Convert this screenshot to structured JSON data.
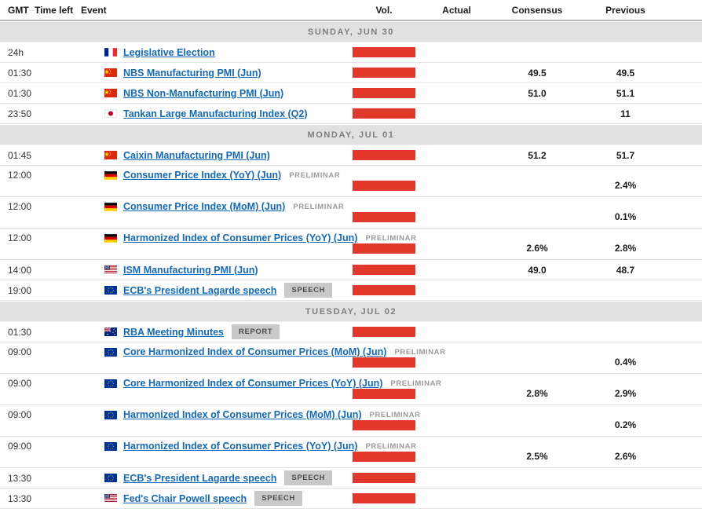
{
  "colors": {
    "volatility_bar_red": "#e0392b",
    "event_link_blue": "#1569b3",
    "section_band_gray": "#e1e1e1",
    "badge_gray": "#c9c9c9",
    "note_gray": "#9b9b9b"
  },
  "columns": {
    "gmt": "GMT",
    "time_left": "Time left",
    "event": "Event",
    "vol": "Vol.",
    "actual": "Actual",
    "consensus": "Consensus",
    "previous": "Previous"
  },
  "sections": [
    {
      "title": "SUNDAY, JUN 30",
      "rows": [
        {
          "time": "24h",
          "country": "FR",
          "flag": "france-flag-icon",
          "event": "Legislative Election",
          "note": "",
          "badge": "",
          "two_line": false,
          "actual": "",
          "consensus": "",
          "previous": ""
        },
        {
          "time": "01:30",
          "country": "CN",
          "flag": "china-flag-icon",
          "event": "NBS Manufacturing PMI (Jun)",
          "note": "",
          "badge": "",
          "two_line": false,
          "actual": "",
          "consensus": "49.5",
          "previous": "49.5"
        },
        {
          "time": "01:30",
          "country": "CN",
          "flag": "china-flag-icon",
          "event": "NBS Non-Manufacturing PMI (Jun)",
          "note": "",
          "badge": "",
          "two_line": false,
          "actual": "",
          "consensus": "51.0",
          "previous": "51.1"
        },
        {
          "time": "23:50",
          "country": "JP",
          "flag": "japan-flag-icon",
          "event": "Tankan Large Manufacturing Index (Q2)",
          "note": "",
          "badge": "",
          "two_line": false,
          "actual": "",
          "consensus": "",
          "previous": "11"
        }
      ]
    },
    {
      "title": "MONDAY, JUL 01",
      "rows": [
        {
          "time": "01:45",
          "country": "CN",
          "flag": "china-flag-icon",
          "event": "Caixin Manufacturing PMI (Jun)",
          "note": "",
          "badge": "",
          "two_line": false,
          "actual": "",
          "consensus": "51.2",
          "previous": "51.7"
        },
        {
          "time": "12:00",
          "country": "DE",
          "flag": "germany-flag-icon",
          "event": "Consumer Price Index (YoY) (Jun)",
          "note": "PRELIMINAR",
          "badge": "",
          "two_line": true,
          "actual": "",
          "consensus": "",
          "previous": "2.4%"
        },
        {
          "time": "12:00",
          "country": "DE",
          "flag": "germany-flag-icon",
          "event": "Consumer Price Index (MoM) (Jun)",
          "note": "PRELIMINAR",
          "badge": "",
          "two_line": true,
          "actual": "",
          "consensus": "",
          "previous": "0.1%"
        },
        {
          "time": "12:00",
          "country": "DE",
          "flag": "germany-flag-icon",
          "event": "Harmonized Index of Consumer Prices (YoY) (Jun)",
          "note": "PRELIMINAR",
          "badge": "",
          "two_line": true,
          "actual": "",
          "consensus": "2.6%",
          "previous": "2.8%"
        },
        {
          "time": "14:00",
          "country": "US",
          "flag": "usa-flag-icon",
          "event": "ISM Manufacturing PMI (Jun)",
          "note": "",
          "badge": "",
          "two_line": false,
          "actual": "",
          "consensus": "49.0",
          "previous": "48.7"
        },
        {
          "time": "19:00",
          "country": "EU",
          "flag": "european-union-flag-icon",
          "event": "ECB's President Lagarde speech",
          "note": "",
          "badge": "SPEECH",
          "two_line": false,
          "actual": "",
          "consensus": "",
          "previous": ""
        }
      ]
    },
    {
      "title": "TUESDAY, JUL 02",
      "rows": [
        {
          "time": "01:30",
          "country": "AU",
          "flag": "australia-flag-icon",
          "event": "RBA Meeting Minutes",
          "note": "",
          "badge": "REPORT",
          "two_line": false,
          "actual": "",
          "consensus": "",
          "previous": ""
        },
        {
          "time": "09:00",
          "country": "EU",
          "flag": "european-union-flag-icon",
          "event": "Core Harmonized Index of Consumer Prices (MoM) (Jun)",
          "note": "PRELIMINAR",
          "badge": "",
          "two_line": true,
          "actual": "",
          "consensus": "",
          "previous": "0.4%"
        },
        {
          "time": "09:00",
          "country": "EU",
          "flag": "european-union-flag-icon",
          "event": "Core Harmonized Index of Consumer Prices (YoY) (Jun)",
          "note": "PRELIMINAR",
          "badge": "",
          "two_line": true,
          "actual": "",
          "consensus": "2.8%",
          "previous": "2.9%"
        },
        {
          "time": "09:00",
          "country": "EU",
          "flag": "european-union-flag-icon",
          "event": "Harmonized Index of Consumer Prices (MoM) (Jun)",
          "note": "PRELIMINAR",
          "badge": "",
          "two_line": true,
          "actual": "",
          "consensus": "",
          "previous": "0.2%"
        },
        {
          "time": "09:00",
          "country": "EU",
          "flag": "european-union-flag-icon",
          "event": "Harmonized Index of Consumer Prices (YoY) (Jun)",
          "note": "PRELIMINAR",
          "badge": "",
          "two_line": true,
          "actual": "",
          "consensus": "2.5%",
          "previous": "2.6%"
        },
        {
          "time": "13:30",
          "country": "EU",
          "flag": "european-union-flag-icon",
          "event": "ECB's President Lagarde speech",
          "note": "",
          "badge": "SPEECH",
          "two_line": false,
          "actual": "",
          "consensus": "",
          "previous": ""
        },
        {
          "time": "13:30",
          "country": "US",
          "flag": "usa-flag-icon",
          "event": "Fed's Chair Powell speech",
          "note": "",
          "badge": "SPEECH",
          "two_line": false,
          "actual": "",
          "consensus": "",
          "previous": ""
        }
      ]
    }
  ]
}
